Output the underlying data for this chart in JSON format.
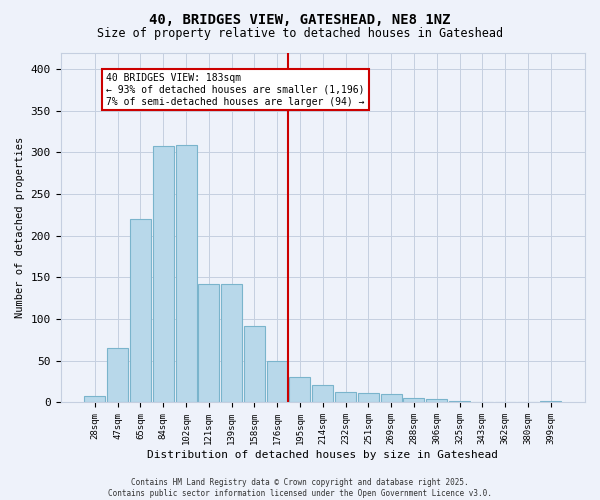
{
  "title": "40, BRIDGES VIEW, GATESHEAD, NE8 1NZ",
  "subtitle": "Size of property relative to detached houses in Gateshead",
  "xlabel": "Distribution of detached houses by size in Gateshead",
  "ylabel": "Number of detached properties",
  "categories": [
    "28sqm",
    "47sqm",
    "65sqm",
    "84sqm",
    "102sqm",
    "121sqm",
    "139sqm",
    "158sqm",
    "176sqm",
    "195sqm",
    "214sqm",
    "232sqm",
    "251sqm",
    "269sqm",
    "288sqm",
    "306sqm",
    "325sqm",
    "343sqm",
    "362sqm",
    "380sqm",
    "399sqm"
  ],
  "values": [
    8,
    65,
    220,
    308,
    309,
    142,
    142,
    92,
    50,
    30,
    21,
    13,
    11,
    10,
    5,
    4,
    2,
    1,
    1,
    1,
    2
  ],
  "bar_color": "#b8d8ea",
  "bar_edge_color": "#7ab4cc",
  "vline_x_index": 8,
  "vline_color": "#cc0000",
  "annotation_title": "40 BRIDGES VIEW: 183sqm",
  "annotation_line1": "← 93% of detached houses are smaller (1,196)",
  "annotation_line2": "7% of semi-detached houses are larger (94) →",
  "annotation_box_color": "#cc0000",
  "annotation_text_color": "#000000",
  "annotation_bg_color": "#ffffff",
  "ylim": [
    0,
    420
  ],
  "yticks": [
    0,
    50,
    100,
    150,
    200,
    250,
    300,
    350,
    400
  ],
  "footer_line1": "Contains HM Land Registry data © Crown copyright and database right 2025.",
  "footer_line2": "Contains public sector information licensed under the Open Government Licence v3.0.",
  "bg_color": "#eef2fa",
  "grid_color": "#c5cfe0"
}
